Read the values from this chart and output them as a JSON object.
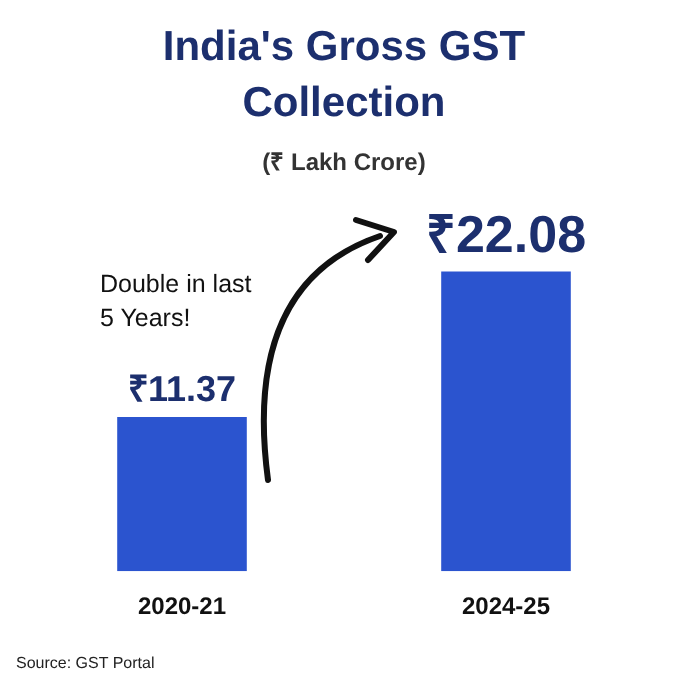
{
  "chart_data": {
    "type": "bar",
    "title": "India's Gross GST Collection",
    "subtitle": "(₹ Lakh Crore)",
    "categories": [
      "2020-21",
      "2024-25"
    ],
    "values": [
      11.37,
      22.08
    ],
    "value_labels": [
      "₹11.37",
      "₹22.08"
    ],
    "color": "#2b54cf",
    "annotations": [
      "Double in last 5 Years!",
      "Source: GST Portal"
    ]
  }
}
